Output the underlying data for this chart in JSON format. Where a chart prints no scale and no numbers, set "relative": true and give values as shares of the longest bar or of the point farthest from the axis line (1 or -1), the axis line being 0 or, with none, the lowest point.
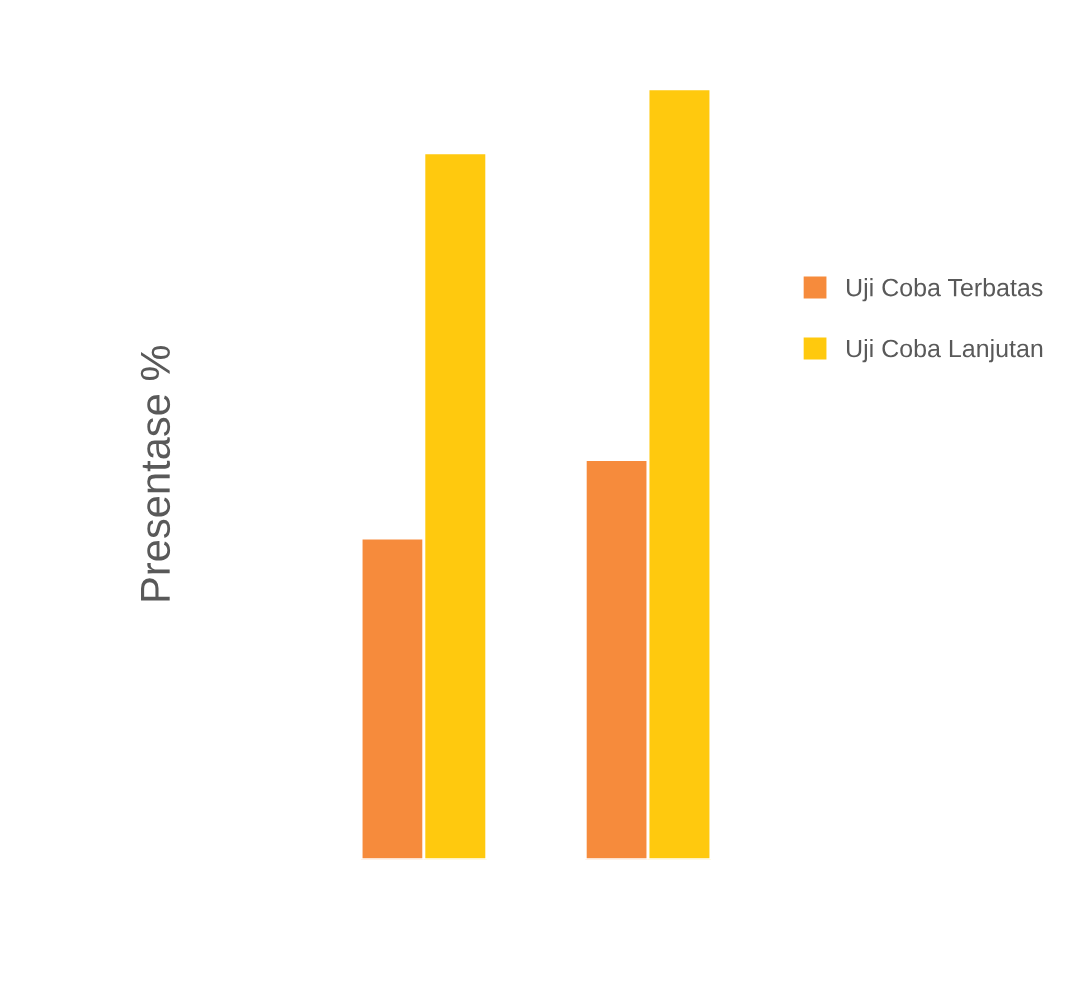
{
  "chart_data": {
    "type": "bar",
    "ylabel": "Presentase %",
    "categories": [
      null,
      null
    ],
    "relative": true,
    "legend": "right",
    "grid": false,
    "series": [
      {
        "name": "Uji Coba Terbatas",
        "color": "#f68b3c",
        "values": [
          0.417,
          0.519
        ]
      },
      {
        "name": "Uji Coba Lanjutan",
        "color": "#ffc90e",
        "values": [
          0.917,
          1.0
        ]
      }
    ]
  }
}
